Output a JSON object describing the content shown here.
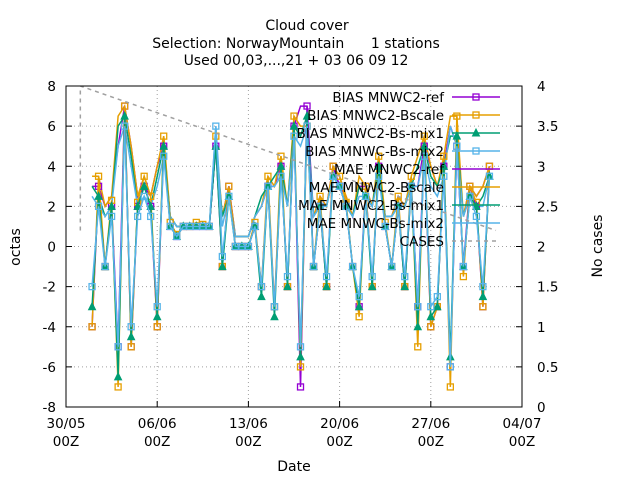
{
  "chart_data": {
    "type": "line",
    "title": [
      "Cloud cover",
      "Selection: NorwayMountain      1 stations",
      "Used 00,03,...,21 + 03 06 09 12"
    ],
    "xlabel": "Date",
    "ylabel": "octas",
    "y2label": "No cases",
    "xlim": [
      0,
      35
    ],
    "ylim": [
      -8,
      8
    ],
    "y2lim": [
      0,
      4
    ],
    "grid": true,
    "legend_position": "top-right",
    "x_ticks": [
      {
        "pos": 0,
        "label": [
          "30/05",
          "00Z"
        ]
      },
      {
        "pos": 7,
        "label": [
          "06/06",
          "00Z"
        ]
      },
      {
        "pos": 14,
        "label": [
          "13/06",
          "00Z"
        ]
      },
      {
        "pos": 21,
        "label": [
          "20/06",
          "00Z"
        ]
      },
      {
        "pos": 28,
        "label": [
          "27/06",
          "00Z"
        ]
      },
      {
        "pos": 35,
        "label": [
          "04/07",
          "00Z"
        ]
      }
    ],
    "y_ticks": [
      -8,
      -6,
      -4,
      -2,
      0,
      2,
      4,
      6,
      8
    ],
    "y2_ticks": [
      0,
      0.5,
      1,
      1.5,
      2,
      2.5,
      3,
      3.5,
      4
    ],
    "x_day_offsets": [
      2.0,
      2.5,
      3.0,
      3.5,
      4.0,
      4.5,
      5.0,
      5.5,
      6.0,
      6.5,
      7.0,
      7.5,
      8.0,
      8.5,
      9.0,
      9.5,
      10.0,
      10.5,
      11.0,
      11.5,
      12.0,
      12.5,
      13.0,
      13.5,
      14.0,
      14.5,
      15.0,
      15.5,
      16.0,
      16.5,
      17.0,
      17.5,
      18.0,
      18.5,
      19.0,
      19.5,
      20.0,
      20.5,
      21.0,
      21.5,
      22.0,
      22.5,
      23.0,
      23.5,
      24.0,
      24.5,
      25.0,
      25.5,
      26.0,
      26.5,
      27.0,
      27.5,
      28.0,
      28.5,
      29.0,
      29.5,
      30.0,
      30.5,
      31.0,
      31.5,
      32.0,
      32.5
    ],
    "series": [
      {
        "name": "BIAS MNWC2-ref",
        "color": "#9400d3",
        "marker": "square",
        "values": [
          -4,
          3,
          -1,
          2,
          -5,
          7,
          -5,
          2,
          3,
          2,
          -4,
          5,
          1,
          0.5,
          1,
          1,
          1,
          1,
          1,
          5,
          -1,
          3,
          0,
          0,
          0,
          1,
          -2,
          3,
          -3,
          4,
          -2,
          6,
          -7,
          7,
          -1,
          2,
          -2,
          4,
          3,
          2,
          -1,
          -3,
          3,
          -2,
          4,
          1,
          -1,
          2,
          -2,
          3,
          -3,
          5,
          -4,
          -3,
          4,
          -6,
          5,
          -1,
          3,
          2,
          -3,
          4
        ]
      },
      {
        "name": "BIAS MNWC2-Bscale",
        "color": "#e69f00",
        "marker": "square",
        "values": [
          -4,
          3.5,
          -1,
          2.3,
          -7,
          7,
          -5,
          2.2,
          3.5,
          2.5,
          -4,
          5.5,
          1.2,
          0.6,
          1,
          1,
          1.2,
          1.1,
          1,
          5.5,
          -1,
          3,
          0,
          0,
          0,
          1.2,
          -2,
          3.5,
          -3,
          4.5,
          -2,
          6.5,
          -6,
          6,
          -1,
          2.5,
          -2,
          4,
          3.5,
          2.2,
          -1,
          -3.5,
          3,
          -2,
          4.5,
          1.2,
          -1,
          2.5,
          -2,
          3.5,
          -5,
          5.5,
          -4,
          -3,
          4.5,
          -7,
          6.5,
          -1.5,
          3,
          2.2,
          -3,
          4
        ]
      },
      {
        "name": "BIAS MNWC2-Bs-mix1",
        "color": "#009e73",
        "marker": "triangle",
        "values": [
          -3,
          2.5,
          -1,
          2,
          -6.5,
          6.5,
          -4.5,
          2,
          3,
          2,
          -3.5,
          5,
          1,
          0.5,
          1,
          1,
          1,
          1,
          1,
          5,
          -1,
          2.5,
          0,
          0,
          0,
          1,
          -2.5,
          3,
          -3.5,
          4,
          -2,
          6,
          -5.5,
          6.5,
          -1,
          2,
          -2,
          3.5,
          3,
          2,
          -1,
          -3,
          2.5,
          -2,
          4,
          1,
          -1,
          2,
          -2,
          3,
          -4,
          5,
          -3.5,
          -3,
          4,
          -5.5,
          5.5,
          -1,
          2.5,
          2,
          -2.5,
          3.5
        ]
      },
      {
        "name": "BIAS MNWC-Bs-mix2",
        "color": "#56b4e9",
        "marker": "square",
        "values": [
          -2,
          2,
          -1,
          1.5,
          -5,
          6,
          -4,
          1.5,
          2.5,
          1.5,
          -3,
          4.5,
          1,
          0.5,
          1,
          1,
          1,
          1,
          1,
          6,
          -0.5,
          2.5,
          0,
          0,
          0,
          1,
          -2,
          3,
          -3,
          3.5,
          -1.5,
          5.5,
          -5,
          6,
          -1,
          2,
          -1.5,
          3.5,
          3,
          2,
          -1,
          -2.5,
          2.5,
          -1.5,
          3.5,
          1,
          -1,
          2,
          -1.5,
          3,
          -3,
          4.5,
          -3,
          -2.5,
          3.5,
          -6,
          5,
          -1,
          2.5,
          1.5,
          -2,
          3.5
        ]
      },
      {
        "name": "MAE MNWC2-ref",
        "color": "#9400d3",
        "marker": "none",
        "values": [
          3,
          3,
          2,
          2.5,
          5,
          7,
          5,
          2.5,
          3,
          2.5,
          4,
          5,
          1.5,
          1,
          1,
          1,
          1,
          1,
          1,
          5,
          1.5,
          3,
          0.5,
          0.5,
          0.5,
          1.5,
          2,
          3,
          3,
          4,
          2,
          6,
          7,
          7,
          1.5,
          2.5,
          2,
          4,
          3,
          2.5,
          1.5,
          3,
          3,
          2,
          4,
          1.5,
          1.5,
          2.5,
          2,
          3,
          3,
          5,
          4,
          3,
          4,
          6,
          5,
          1.5,
          3,
          2.5,
          3,
          4
        ]
      },
      {
        "name": "MAE MNWC2-Bscale",
        "color": "#e69f00",
        "marker": "none",
        "values": [
          3.5,
          3.5,
          2,
          2.5,
          6.5,
          7,
          5,
          2.5,
          3.5,
          2.5,
          4,
          5.5,
          1.5,
          1,
          1,
          1,
          1.2,
          1.1,
          1,
          5.5,
          1.5,
          3,
          0.5,
          0.5,
          0.5,
          1.5,
          2,
          3.5,
          3,
          4.5,
          2,
          6.5,
          6,
          6,
          1.5,
          2.5,
          2,
          4,
          3.5,
          2.5,
          1.5,
          3.5,
          3,
          2,
          4.5,
          1.5,
          1.5,
          2.5,
          2,
          3.5,
          4.5,
          5.5,
          4,
          3,
          4.5,
          6.5,
          6.5,
          1.5,
          3,
          2.5,
          3,
          4
        ]
      },
      {
        "name": "MAE MNWC2-Bs-mix1",
        "color": "#009e73",
        "marker": "none",
        "values": [
          3,
          2.5,
          1.5,
          2,
          6,
          6.5,
          4.5,
          2,
          3,
          2,
          3.5,
          5,
          1.5,
          1,
          1,
          1,
          1,
          1,
          1,
          5,
          1.5,
          2.5,
          0.5,
          0.5,
          0.5,
          1.5,
          2.5,
          3,
          3.5,
          4,
          2,
          6,
          5.5,
          6.5,
          1.5,
          2,
          2,
          3.5,
          3,
          2,
          1.5,
          3,
          2.5,
          2,
          4,
          1.5,
          1.5,
          2,
          2,
          3,
          4,
          5,
          3.5,
          3,
          4,
          5.5,
          5.5,
          1.5,
          2.5,
          2,
          2.5,
          3.5
        ]
      },
      {
        "name": "MAE MNWC-Bs-mix2",
        "color": "#56b4e9",
        "marker": "none",
        "values": [
          2.5,
          2,
          1.5,
          2,
          5,
          6,
          4,
          2,
          2.5,
          2,
          3,
          4.5,
          1.5,
          1,
          1,
          1,
          1,
          1,
          1,
          6,
          1,
          2.5,
          0.5,
          0.5,
          0.5,
          1.5,
          2,
          3,
          3,
          3.5,
          2,
          5.5,
          5,
          6,
          1.5,
          2,
          2,
          3.5,
          3,
          2,
          1.5,
          2.5,
          2.5,
          2,
          3.5,
          1.5,
          1.5,
          2,
          2,
          3,
          3,
          4.5,
          3,
          2.5,
          3.5,
          6,
          5,
          1.5,
          2.5,
          2,
          2,
          3.5
        ]
      },
      {
        "name": "CASES",
        "color": "#a0a0a0",
        "marker": "none",
        "axis": "y2",
        "dashed": true,
        "x": [
          1.1,
          1.1,
          33
        ],
        "values": [
          2.2,
          4,
          2.2
        ]
      }
    ]
  }
}
